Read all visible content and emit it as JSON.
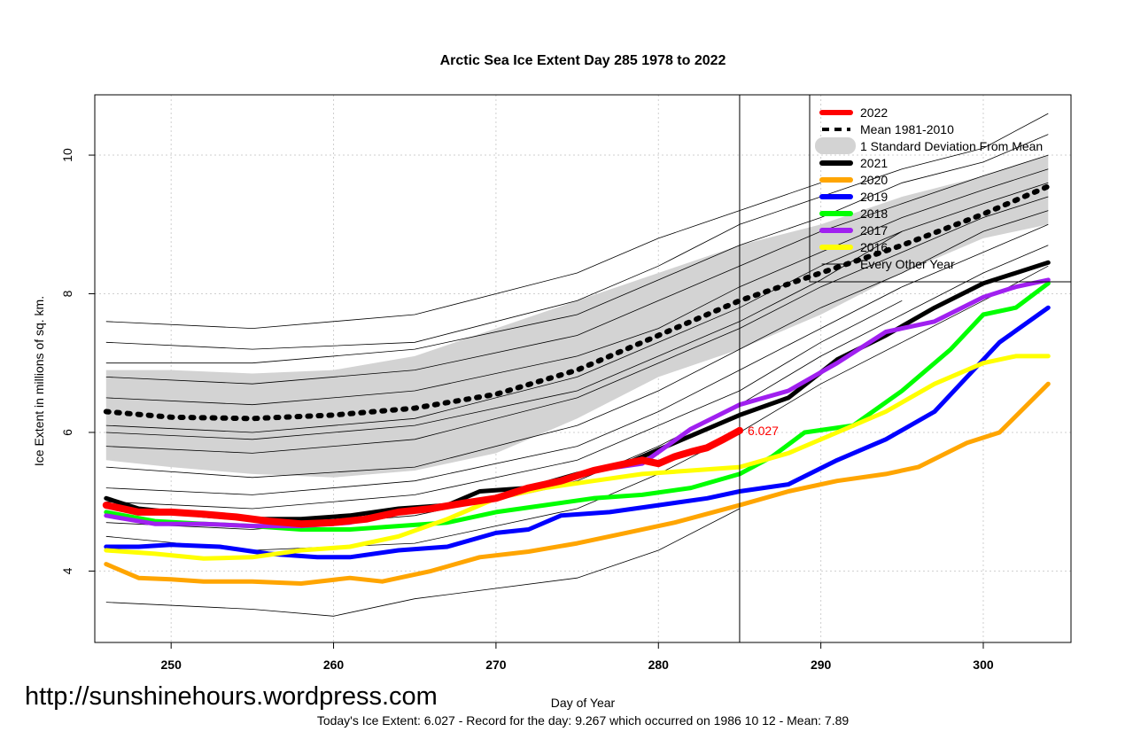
{
  "chart_data": {
    "type": "line",
    "title": "Arctic Sea Ice Extent Day 285 1978 to 2022",
    "xlabel": "Day of Year",
    "ylabel": "Ice Extent in millions of sq. km.",
    "xlim": [
      245.3,
      305.4
    ],
    "ylim": [
      2.97,
      10.87
    ],
    "x_ticks": [
      250,
      260,
      270,
      280,
      290,
      300
    ],
    "y_ticks": [
      4,
      6,
      8,
      10
    ],
    "grid": true,
    "current_day": 285,
    "current_value_label": "6.027",
    "legend_position": "top-right",
    "legend": [
      {
        "label": "2022",
        "color": "#ff0000",
        "style": "thick"
      },
      {
        "label": "Mean 1981-2010",
        "color": "#000000",
        "style": "dashed"
      },
      {
        "label": "1 Standard Deviation From Mean",
        "color": "#d3d3d3",
        "style": "band"
      },
      {
        "label": "2021",
        "color": "#000000",
        "style": "thick"
      },
      {
        "label": "2020",
        "color": "#ffa500",
        "style": "thick"
      },
      {
        "label": "2019",
        "color": "#0000ff",
        "style": "thick"
      },
      {
        "label": "2018",
        "color": "#00ff00",
        "style": "thick"
      },
      {
        "label": "2017",
        "color": "#a020f0",
        "style": "thick"
      },
      {
        "label": "2016",
        "color": "#ffff00",
        "style": "thick"
      },
      {
        "label": "Every Other Year",
        "color": "#000000",
        "style": "thin"
      }
    ],
    "std_band": {
      "x": [
        246,
        250,
        255,
        260,
        265,
        270,
        275,
        280,
        285,
        290,
        295,
        300,
        304
      ],
      "upper": [
        6.9,
        6.9,
        6.85,
        6.9,
        7.1,
        7.5,
        7.9,
        8.3,
        8.7,
        9.0,
        9.4,
        9.7,
        10.0
      ],
      "lower": [
        5.6,
        5.5,
        5.4,
        5.35,
        5.45,
        5.7,
        6.2,
        6.8,
        7.2,
        7.7,
        8.3,
        8.8,
        9.0
      ]
    },
    "series": [
      {
        "name": "Mean 1981-2010",
        "color": "#000000",
        "dash": true,
        "x": [
          246,
          250,
          255,
          260,
          265,
          270,
          275,
          280,
          285,
          290,
          295,
          300,
          304
        ],
        "y": [
          6.3,
          6.22,
          6.2,
          6.25,
          6.35,
          6.55,
          6.9,
          7.4,
          7.9,
          8.3,
          8.7,
          9.15,
          9.55
        ]
      },
      {
        "name": "2021",
        "color": "#000000",
        "width": 5,
        "x": [
          246,
          248,
          250,
          252,
          255,
          258,
          261,
          264,
          267,
          269,
          272,
          275,
          278,
          281,
          285,
          288,
          291,
          294,
          297,
          300,
          304
        ],
        "y": [
          5.05,
          4.9,
          4.85,
          4.8,
          4.75,
          4.75,
          4.8,
          4.9,
          4.95,
          5.15,
          5.2,
          5.4,
          5.55,
          5.85,
          6.25,
          6.5,
          7.05,
          7.4,
          7.8,
          8.15,
          8.45
        ]
      },
      {
        "name": "2020",
        "color": "#ffa500",
        "width": 5,
        "x": [
          246,
          248,
          250,
          252,
          255,
          258,
          261,
          263,
          266,
          269,
          272,
          275,
          278,
          281,
          285,
          288,
          291,
          294,
          296,
          299,
          301,
          304
        ],
        "y": [
          4.1,
          3.9,
          3.88,
          3.85,
          3.85,
          3.82,
          3.9,
          3.85,
          4.0,
          4.2,
          4.28,
          4.4,
          4.55,
          4.7,
          4.95,
          5.15,
          5.3,
          5.4,
          5.5,
          5.85,
          6.0,
          6.7
        ]
      },
      {
        "name": "2019",
        "color": "#0000ff",
        "width": 5,
        "x": [
          246,
          248,
          250,
          253,
          256,
          259,
          261,
          264,
          267,
          270,
          272,
          274,
          277,
          280,
          283,
          285,
          288,
          291,
          294,
          297,
          299,
          301,
          304
        ],
        "y": [
          4.35,
          4.35,
          4.38,
          4.35,
          4.25,
          4.2,
          4.2,
          4.3,
          4.35,
          4.55,
          4.6,
          4.8,
          4.85,
          4.95,
          5.05,
          5.15,
          5.25,
          5.6,
          5.9,
          6.3,
          6.8,
          7.3,
          7.8
        ]
      },
      {
        "name": "2018",
        "color": "#00ff00",
        "width": 5,
        "x": [
          246,
          249,
          252,
          255,
          258,
          261,
          264,
          267,
          270,
          273,
          276,
          279,
          282,
          285,
          287,
          289,
          292,
          295,
          298,
          300,
          302,
          304
        ],
        "y": [
          4.85,
          4.72,
          4.68,
          4.65,
          4.6,
          4.6,
          4.65,
          4.7,
          4.85,
          4.95,
          5.05,
          5.1,
          5.2,
          5.4,
          5.65,
          6.0,
          6.1,
          6.6,
          7.2,
          7.7,
          7.8,
          8.15
        ]
      },
      {
        "name": "2017",
        "color": "#a020f0",
        "width": 5,
        "x": [
          246,
          249,
          252,
          255,
          258,
          261,
          264,
          267,
          270,
          273,
          276,
          279,
          282,
          285,
          288,
          291,
          294,
          297,
          300,
          302,
          304
        ],
        "y": [
          4.8,
          4.68,
          4.68,
          4.65,
          4.65,
          4.7,
          4.85,
          4.95,
          5.05,
          5.2,
          5.45,
          5.55,
          6.05,
          6.4,
          6.6,
          7.0,
          7.45,
          7.6,
          7.95,
          8.1,
          8.2
        ]
      },
      {
        "name": "2016",
        "color": "#ffff00",
        "width": 5,
        "x": [
          246,
          249,
          252,
          255,
          258,
          261,
          264,
          267,
          270,
          273,
          276,
          279,
          282,
          285,
          288,
          291,
          294,
          297,
          300,
          302,
          304
        ],
        "y": [
          4.3,
          4.25,
          4.18,
          4.2,
          4.3,
          4.35,
          4.5,
          4.75,
          5.05,
          5.2,
          5.3,
          5.4,
          5.45,
          5.5,
          5.7,
          6.0,
          6.3,
          6.7,
          7.0,
          7.1,
          7.1
        ]
      },
      {
        "name": "2022",
        "color": "#ff0000",
        "width": 8,
        "x": [
          246,
          248,
          250,
          252,
          254,
          256,
          258,
          260,
          262,
          264,
          266,
          268,
          270,
          272,
          274,
          276,
          278,
          279,
          280,
          281,
          282,
          283,
          284,
          285
        ],
        "y": [
          4.95,
          4.85,
          4.85,
          4.82,
          4.78,
          4.72,
          4.68,
          4.7,
          4.75,
          4.85,
          4.9,
          4.98,
          5.05,
          5.2,
          5.3,
          5.45,
          5.55,
          5.6,
          5.55,
          5.65,
          5.72,
          5.78,
          5.9,
          6.027
        ]
      }
    ],
    "other_years": [
      {
        "x": [
          246,
          255,
          265,
          275,
          280,
          285,
          290,
          295,
          300,
          304
        ],
        "y": [
          7.3,
          7.2,
          7.3,
          7.9,
          8.4,
          9.0,
          9.4,
          9.8,
          10.1,
          10.6
        ]
      },
      {
        "x": [
          246,
          255,
          265,
          275,
          280,
          285,
          290,
          295,
          300,
          304
        ],
        "y": [
          7.0,
          7.0,
          7.2,
          7.7,
          8.2,
          8.7,
          9.1,
          9.6,
          9.9,
          10.3
        ]
      },
      {
        "x": [
          246,
          255,
          265,
          275,
          280,
          285,
          290,
          295,
          300,
          304
        ],
        "y": [
          6.8,
          6.7,
          6.9,
          7.4,
          7.9,
          8.4,
          8.9,
          9.3,
          9.7,
          10.0
        ]
      },
      {
        "x": [
          246,
          255,
          265,
          275,
          280,
          285,
          290,
          295,
          300,
          304
        ],
        "y": [
          6.5,
          6.4,
          6.6,
          7.1,
          7.5,
          8.1,
          8.6,
          9.1,
          9.5,
          9.8
        ]
      },
      {
        "x": [
          246,
          255,
          265,
          275,
          280,
          285,
          290,
          295,
          300,
          304
        ],
        "y": [
          6.1,
          6.0,
          6.2,
          6.8,
          7.3,
          7.8,
          8.4,
          8.9,
          9.3,
          9.6
        ]
      },
      {
        "x": [
          246,
          255,
          265,
          275,
          280,
          285,
          290,
          295,
          300,
          304
        ],
        "y": [
          5.8,
          5.7,
          5.9,
          6.5,
          7.0,
          7.5,
          8.1,
          8.6,
          9.1,
          9.4
        ]
      },
      {
        "x": [
          246,
          255,
          265,
          275,
          280,
          285,
          290,
          295,
          300,
          304
        ],
        "y": [
          5.5,
          5.35,
          5.5,
          6.1,
          6.6,
          7.2,
          7.8,
          8.3,
          8.9,
          9.2
        ]
      },
      {
        "x": [
          246,
          255,
          265,
          275,
          280,
          285,
          290,
          295,
          300,
          304
        ],
        "y": [
          5.2,
          5.1,
          5.3,
          5.8,
          6.3,
          6.9,
          7.5,
          8.1,
          8.6,
          9.0
        ]
      },
      {
        "x": [
          246,
          255,
          265,
          275,
          280,
          285,
          290,
          295,
          300,
          304
        ],
        "y": [
          4.7,
          4.6,
          4.8,
          5.3,
          5.8,
          6.4,
          7.1,
          7.7,
          8.3,
          8.7
        ]
      },
      {
        "x": [
          246,
          255,
          265,
          275,
          280,
          285,
          290,
          295,
          300,
          304
        ],
        "y": [
          4.5,
          4.3,
          4.4,
          4.9,
          5.4,
          6.0,
          6.7,
          7.3,
          7.9,
          8.4
        ]
      },
      {
        "x": [
          246,
          255,
          260,
          265,
          275,
          280,
          285
        ],
        "y": [
          3.55,
          3.45,
          3.35,
          3.6,
          3.9,
          4.3,
          4.9
        ]
      },
      {
        "x": [
          246,
          255,
          265,
          275,
          280,
          285,
          290
        ],
        "y": [
          7.6,
          7.5,
          7.7,
          8.3,
          8.8,
          9.2,
          9.6
        ]
      },
      {
        "x": [
          246,
          255,
          265,
          275,
          280,
          285,
          290,
          295
        ],
        "y": [
          6.0,
          5.9,
          6.1,
          6.6,
          7.1,
          7.6,
          8.2,
          8.9
        ]
      },
      {
        "x": [
          246,
          255,
          265,
          275,
          280,
          285,
          290,
          295
        ],
        "y": [
          5.0,
          4.9,
          5.1,
          5.6,
          6.1,
          6.6,
          7.3,
          7.9
        ]
      }
    ]
  },
  "watermark": "http://sunshinehours.wordpress.com",
  "footer": "Today's Ice Extent: 6.027  - Record for the day: 9.267 which occurred on 1986 10 12  - Mean: 7.89"
}
